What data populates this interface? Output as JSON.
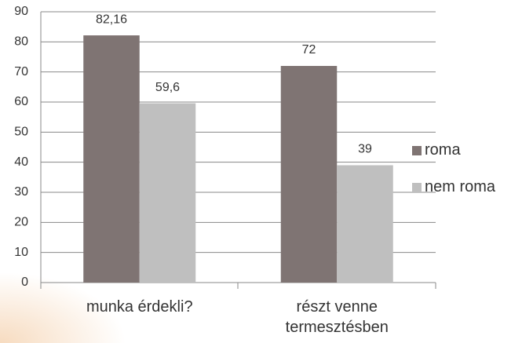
{
  "chart_data": {
    "type": "bar",
    "categories": [
      "munka érdekli?",
      "részt venne termesztésben"
    ],
    "series": [
      {
        "name": "roma",
        "color": "#7f7473",
        "values": [
          82.16,
          72
        ],
        "value_labels": [
          "82,16",
          "72"
        ]
      },
      {
        "name": "nem roma",
        "color": "#bfbfbf",
        "values": [
          59.6,
          39
        ],
        "value_labels": [
          "59,6",
          "39"
        ]
      }
    ],
    "ylim": [
      0,
      90
    ],
    "yticks": [
      0,
      10,
      20,
      30,
      40,
      50,
      60,
      70,
      80,
      90
    ],
    "grid": true,
    "legend": "right"
  }
}
